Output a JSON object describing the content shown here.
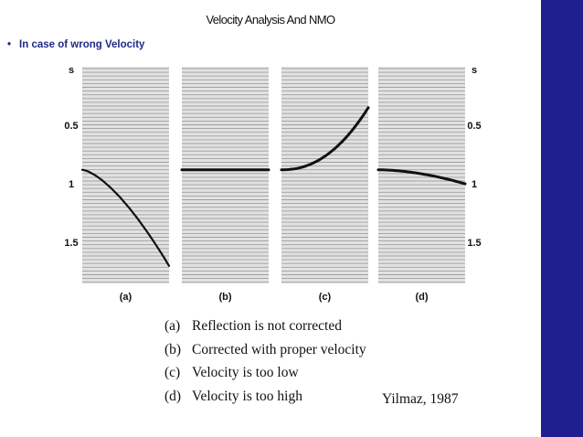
{
  "slide": {
    "title": "Velocity Analysis And NMO",
    "bullet": "In case of wrong Velocity",
    "accent_color": "#1f1f8f",
    "bullet_color": "#1f2a85"
  },
  "figure": {
    "axis_unit": "s",
    "ticks": [
      {
        "label": "0.5",
        "time": 0.5
      },
      {
        "label": "1",
        "time": 1.0
      },
      {
        "label": "1.5",
        "time": 1.5
      }
    ],
    "time_range": [
      0.0,
      1.85
    ],
    "panels": [
      {
        "id": "a",
        "label": "(a)",
        "curve_shape": "downward-hyperbola",
        "start_time": 0.88,
        "end_time": 1.7
      },
      {
        "id": "b",
        "label": "(b)",
        "curve_shape": "flat",
        "start_time": 0.88,
        "end_time": 0.88
      },
      {
        "id": "c",
        "label": "(c)",
        "curve_shape": "upward-curve",
        "start_time": 0.88,
        "end_time": 0.35
      },
      {
        "id": "d",
        "label": "(d)",
        "curve_shape": "gentle-downward",
        "start_time": 0.88,
        "end_time": 1.0
      }
    ]
  },
  "legend": [
    {
      "key": "(a)",
      "text": "Reflection is not corrected"
    },
    {
      "key": "(b)",
      "text": "Corrected with proper velocity"
    },
    {
      "key": "(c)",
      "text": "Velocity is too low"
    },
    {
      "key": "(d)",
      "text": "Velocity is too high"
    }
  ],
  "citation": "Yilmaz, 1987"
}
